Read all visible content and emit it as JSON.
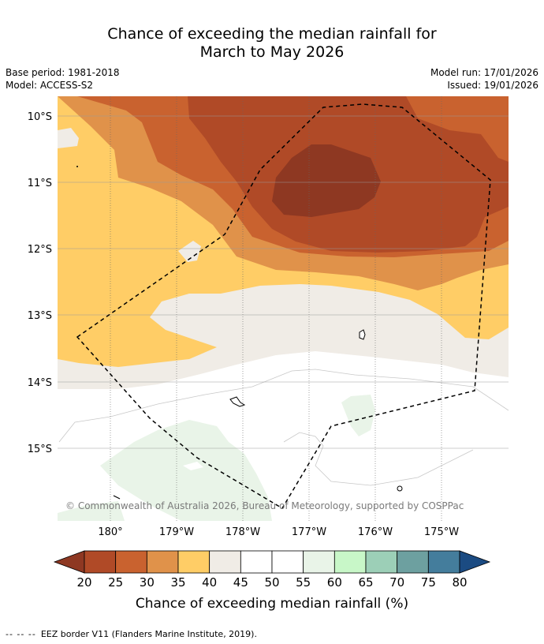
{
  "title": {
    "line1": "Chance of exceeding the median rainfall for",
    "line2": "March to May 2026"
  },
  "meta": {
    "base_period": "Base period: 1981-2018",
    "model": "Model: ACCESS-S2",
    "model_run": "Model run: 17/01/2026",
    "issued": "Issued: 19/01/2026"
  },
  "map": {
    "lat_labels": [
      "10°S",
      "11°S",
      "12°S",
      "13°S",
      "14°S",
      "15°S"
    ],
    "lon_labels": [
      "180°",
      "179°W",
      "178°W",
      "177°W",
      "176°W",
      "175°W"
    ],
    "attribution": "© Commonwealth of Australia 2026, Bureau of Meteorology, supported by COSPPac"
  },
  "colorbar": {
    "ticks": [
      "20",
      "25",
      "30",
      "35",
      "40",
      "45",
      "50",
      "55",
      "60",
      "65",
      "70",
      "75",
      "80"
    ],
    "label": "Chance of exceeding median rainfall (%)",
    "colors": [
      "#b04a27",
      "#c9622f",
      "#e0924a",
      "#ffcd66",
      "#f0ece6",
      "#ffffff",
      "#ffffff",
      "#e9f4e8",
      "#c8f7c8",
      "#9ccfb7",
      "#6da0a0",
      "#447d9c"
    ],
    "under_color": "#8e3822",
    "over_color": "#1b4b82"
  },
  "footer": {
    "legend_marker": "-- -- --",
    "eez_text": "EEZ border V11 (Flanders Marine Institute, 2019)."
  }
}
